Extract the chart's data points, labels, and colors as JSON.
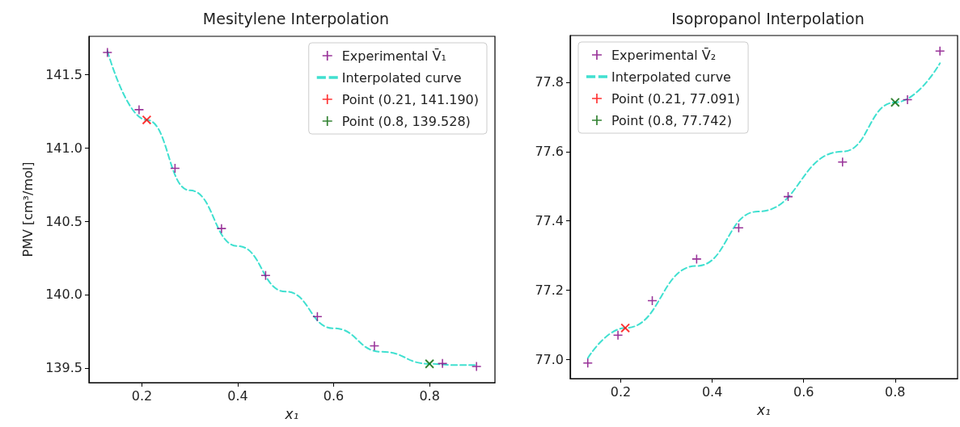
{
  "chart_data": [
    {
      "type": "scatter",
      "title": "Mesitylene Interpolation",
      "xlabel": "x₁",
      "ylabel": "PMV [cm³/mol]",
      "legend": "top right",
      "grid": false,
      "xlim": [
        0.0895,
        0.9365
      ],
      "xticks": [
        0.2,
        0.4,
        0.6,
        0.8
      ],
      "ylim": [
        139.4,
        141.76
      ],
      "yticks": [
        139.5,
        {
          "value": 140,
          "label": "140.0"
        },
        140.5,
        {
          "value": 141,
          "label": "141.0"
        },
        141.5
      ],
      "series": [
        {
          "name": "Experimental V̄₁",
          "marker": "cross",
          "color": "#800080",
          "x": [
            0.128,
            0.194,
            0.269,
            0.366,
            0.458,
            0.566,
            0.685,
            0.827,
            0.898
          ],
          "values": [
            141.65,
            141.26,
            140.86,
            140.45,
            140.13,
            139.85,
            139.65,
            139.53,
            139.51
          ]
        },
        {
          "name": "Interpolated curve",
          "type": "line",
          "marker": "none",
          "line_style": "dashed",
          "color": "#40e0d0",
          "x": [
            0.128,
            0.21,
            0.3,
            0.4,
            0.5,
            0.6,
            0.7,
            0.8,
            0.85,
            0.898
          ],
          "values": [
            141.66,
            141.19,
            140.71,
            140.33,
            140.02,
            139.77,
            139.61,
            139.528,
            139.52,
            139.52
          ]
        },
        {
          "name": "Point (0.21, 141.190)",
          "marker": "cross",
          "color": "#ff0000",
          "x": [
            0.21
          ],
          "values": [
            141.19
          ]
        },
        {
          "name": "Point (0.8, 139.528)",
          "marker": "cross",
          "color": "#006400",
          "x": [
            0.8
          ],
          "values": [
            139.528
          ]
        }
      ]
    },
    {
      "type": "scatter",
      "title": "Isopropanol Interpolation",
      "xlabel": "x₁",
      "legend": "top left",
      "grid": false,
      "xlim": [
        0.0895,
        0.9365
      ],
      "xticks": [
        0.2,
        0.4,
        0.6,
        0.8
      ],
      "ylim": [
        76.945,
        77.935
      ],
      "yticks": [
        {
          "value": 77,
          "label": "77.0"
        },
        77.2,
        77.4,
        77.6,
        77.8
      ],
      "series": [
        {
          "name": "Experimental V̄₂",
          "marker": "cross",
          "color": "#800080",
          "x": [
            0.128,
            0.194,
            0.269,
            0.366,
            0.458,
            0.566,
            0.685,
            0.827,
            0.898
          ],
          "values": [
            76.99,
            77.07,
            77.17,
            77.29,
            77.38,
            77.47,
            77.57,
            77.75,
            77.89
          ]
        },
        {
          "name": "Interpolated curve",
          "type": "line",
          "marker": "none",
          "line_style": "dashed",
          "color": "#40e0d0",
          "x": [
            0.128,
            0.21,
            0.366,
            0.5,
            0.685,
            0.8,
            0.898
          ],
          "values": [
            77.004,
            77.091,
            77.27,
            77.427,
            77.6,
            77.742,
            77.855
          ]
        },
        {
          "name": "Point (0.21, 77.091)",
          "marker": "cross",
          "color": "#ff0000",
          "x": [
            0.21
          ],
          "values": [
            77.091
          ]
        },
        {
          "name": "Point (0.8, 77.742)",
          "marker": "cross",
          "color": "#006400",
          "x": [
            0.8
          ],
          "values": [
            77.742
          ]
        }
      ]
    }
  ]
}
